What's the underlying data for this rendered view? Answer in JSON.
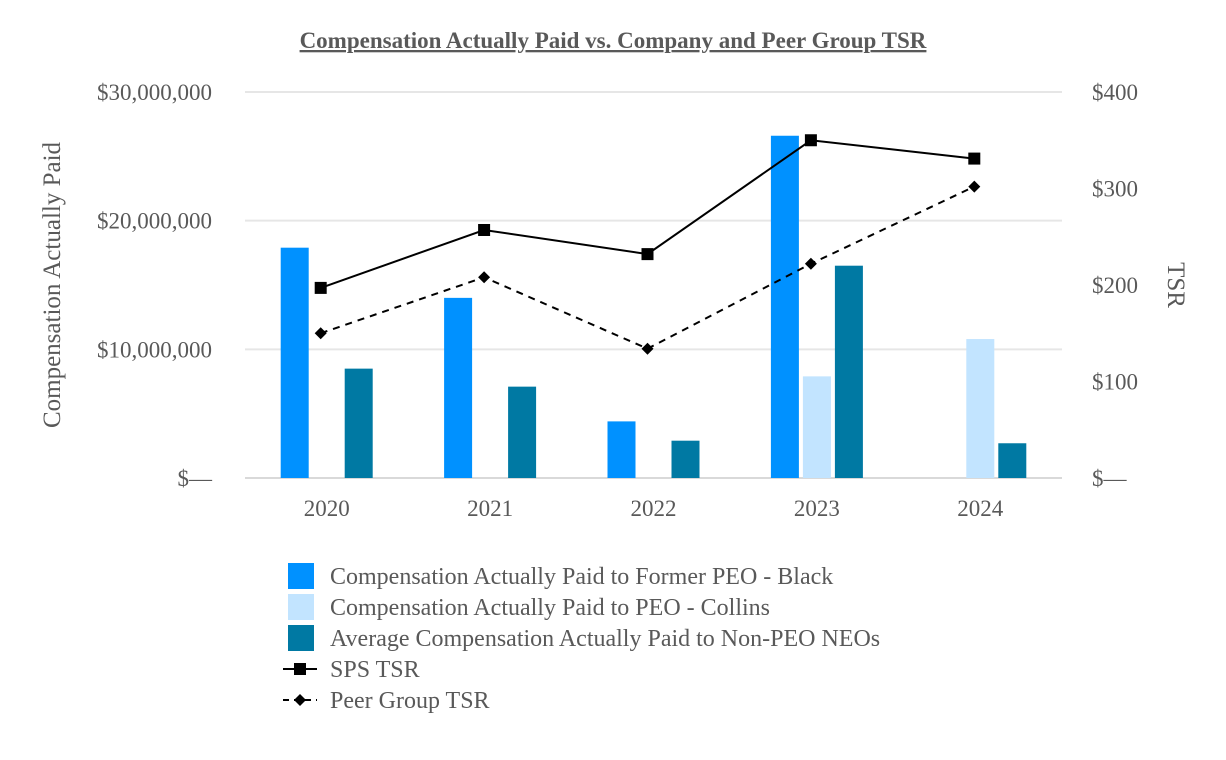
{
  "chart_data": {
    "type": "bar",
    "title": "Compensation Actually Paid vs. Company and Peer Group TSR",
    "categories": [
      "2020",
      "2021",
      "2022",
      "2023",
      "2024"
    ],
    "ylabel": "Compensation Actually Paid",
    "y2label": "TSR",
    "ylim": [
      0,
      30000000
    ],
    "y2lim": [
      0,
      400
    ],
    "yticks": [
      "$—",
      "$10,000,000",
      "$20,000,000",
      "$30,000,000"
    ],
    "y2ticks": [
      "$—",
      "$100",
      "$200",
      "$300",
      "$400"
    ],
    "grid": true,
    "legend_position": "bottom",
    "series": [
      {
        "name": "Compensation Actually Paid to Former PEO - Black",
        "type": "bar",
        "color": "#0091ff",
        "values": [
          17900000,
          14000000,
          4400000,
          26600000,
          null
        ]
      },
      {
        "name": "Compensation Actually Paid to PEO - Collins",
        "type": "bar",
        "color": "#c2e4ff",
        "values": [
          null,
          null,
          null,
          7900000,
          10800000
        ]
      },
      {
        "name": "Average Compensation Actually Paid to Non-PEO NEOs",
        "type": "bar",
        "color": "#0079a3",
        "values": [
          8500000,
          7100000,
          2900000,
          16500000,
          2700000
        ]
      },
      {
        "name": "SPS TSR",
        "type": "line",
        "axis": "right",
        "color": "#000000",
        "marker": "square",
        "dash": false,
        "values": [
          197,
          257,
          232,
          350,
          331
        ]
      },
      {
        "name": "Peer Group TSR",
        "type": "line",
        "axis": "right",
        "color": "#000000",
        "marker": "diamond",
        "dash": true,
        "values": [
          150,
          208,
          134,
          222,
          302
        ]
      }
    ]
  }
}
